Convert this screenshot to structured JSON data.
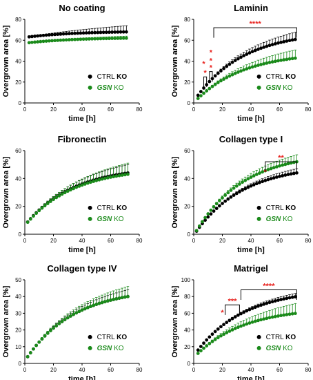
{
  "colors": {
    "ctrl": "#000000",
    "gsn": "#1a8a1a",
    "sig": "#e8231f",
    "axis": "#000000"
  },
  "chart_data": [
    {
      "type": "scatter",
      "title": "No coating",
      "xlabel": "time [h]",
      "ylabel": "Overgrown area [%]",
      "xlim": [
        0,
        80
      ],
      "ylim": [
        0,
        80
      ],
      "xticks": [
        0,
        20,
        40,
        60,
        80
      ],
      "yticks": [
        0,
        20,
        40,
        60,
        80
      ],
      "legend": "bottom-right",
      "series": [
        {
          "name": "CTRL KO",
          "style": "ctrl",
          "start": 0.93,
          "y_end": 68,
          "sd_end": 6,
          "err": "up",
          "x": [
            3,
            72
          ]
        },
        {
          "name": "GSN KO",
          "style": "gsn",
          "start": 0.93,
          "y_end": 62,
          "sd_end": 2,
          "err": "up",
          "x": [
            3,
            72
          ]
        }
      ],
      "annotations": []
    },
    {
      "type": "scatter",
      "title": "Laminin",
      "xlabel": "time [h]",
      "ylabel": "Overgrown area [%]",
      "xlim": [
        0,
        80
      ],
      "ylim": [
        0,
        80
      ],
      "xticks": [
        0,
        20,
        40,
        60,
        80
      ],
      "yticks": [
        0,
        20,
        40,
        60,
        80
      ],
      "legend": "bottom-right",
      "series": [
        {
          "name": "CTRL KO",
          "style": "ctrl",
          "start": 0.12,
          "y_end": 61,
          "sd_end": 7,
          "err": "up",
          "x": [
            3,
            72
          ]
        },
        {
          "name": "GSN KO",
          "style": "gsn",
          "start": 0.1,
          "y_end": 43,
          "sd_end": 8,
          "err": "up",
          "x": [
            3,
            72
          ]
        }
      ],
      "annotations": [
        {
          "label": "*",
          "x1": 7,
          "x2": 9,
          "y": 25
        },
        {
          "label": "*",
          "x1": 11,
          "x2": 13,
          "y": 30
        },
        {
          "label": "****",
          "x1": 14,
          "x2": 72,
          "y": 72
        },
        {
          "label": "*",
          "x": 7,
          "y": 35
        },
        {
          "label": "*",
          "x": 12,
          "y": 38
        },
        {
          "label": "*",
          "x": 12,
          "y": 46
        }
      ]
    },
    {
      "type": "scatter",
      "title": "Fibronectin",
      "xlabel": "time [h]",
      "ylabel": "Overgrown area [%]",
      "xlim": [
        0,
        80
      ],
      "ylim": [
        0,
        60
      ],
      "xticks": [
        0,
        20,
        40,
        60,
        80
      ],
      "yticks": [
        0,
        20,
        40,
        60
      ],
      "legend": "bottom-right",
      "series": [
        {
          "name": "CTRL KO",
          "style": "ctrl",
          "start": 0.2,
          "y_end": 44,
          "sd_end": 6,
          "err": "up",
          "x": [
            2,
            72
          ]
        },
        {
          "name": "GSN KO",
          "style": "gsn",
          "start": 0.2,
          "y_end": 43,
          "sd_end": 8,
          "err": "up",
          "x": [
            2,
            72
          ]
        }
      ],
      "annotations": []
    },
    {
      "type": "scatter",
      "title": "Collagen type I",
      "xlabel": "time [h]",
      "ylabel": "Overgrown area [%]",
      "xlim": [
        0,
        80
      ],
      "ylim": [
        0,
        60
      ],
      "xticks": [
        0,
        20,
        40,
        60,
        80
      ],
      "yticks": [
        0,
        20,
        40,
        60
      ],
      "legend": "bottom-right",
      "series": [
        {
          "name": "CTRL KO",
          "style": "ctrl",
          "start": 0.05,
          "y_end": 44,
          "sd_end": 3,
          "err": "up",
          "x": [
            2,
            72
          ]
        },
        {
          "name": "GSN KO",
          "style": "gsn",
          "start": 0.05,
          "y_end": 52,
          "sd_end": 5,
          "err": "up",
          "x": [
            2,
            72
          ]
        }
      ],
      "annotations": [
        {
          "label": "*",
          "x": 50,
          "y": 43
        },
        {
          "label": "**",
          "x1": 50,
          "x2": 72,
          "y": 52
        }
      ]
    },
    {
      "type": "scatter",
      "title": "Collagen type IV",
      "xlabel": "time [h]",
      "ylabel": "Overgrown area [%]",
      "xlim": [
        0,
        80
      ],
      "ylim": [
        0,
        50
      ],
      "xticks": [
        0,
        20,
        40,
        60,
        80
      ],
      "yticks": [
        0,
        10,
        20,
        30,
        40,
        50
      ],
      "legend": "bottom-right",
      "series": [
        {
          "name": "CTRL KO",
          "style": "ctrl",
          "start": 0.1,
          "y_end": 40,
          "sd_end": 4,
          "err": "up",
          "x": [
            2,
            72
          ]
        },
        {
          "name": "GSN KO",
          "style": "gsn",
          "start": 0.1,
          "y_end": 40,
          "sd_end": 6,
          "err": "up",
          "x": [
            2,
            72
          ]
        }
      ],
      "annotations": []
    },
    {
      "type": "scatter",
      "title": "Matrigel",
      "xlabel": "time [h]",
      "ylabel": "Overgrown area [%]",
      "xlim": [
        0,
        80
      ],
      "ylim": [
        0,
        100
      ],
      "xticks": [
        0,
        20,
        40,
        60,
        80
      ],
      "yticks": [
        0,
        20,
        40,
        60,
        80,
        100
      ],
      "legend": "bottom-right",
      "series": [
        {
          "name": "CTRL KO",
          "style": "ctrl",
          "start": 0.2,
          "y_end": 80,
          "sd_end": 4,
          "err": "up",
          "x": [
            3,
            72
          ]
        },
        {
          "name": "GSN KO",
          "style": "gsn",
          "start": 0.2,
          "y_end": 60,
          "sd_end": 12,
          "err": "up",
          "x": [
            3,
            72
          ]
        }
      ],
      "annotations": [
        {
          "label": "*",
          "x": 20,
          "y": 58
        },
        {
          "label": "***",
          "x1": 22,
          "x2": 32,
          "y": 70
        },
        {
          "label": "****",
          "x1": 33,
          "x2": 72,
          "y": 88
        }
      ]
    }
  ]
}
